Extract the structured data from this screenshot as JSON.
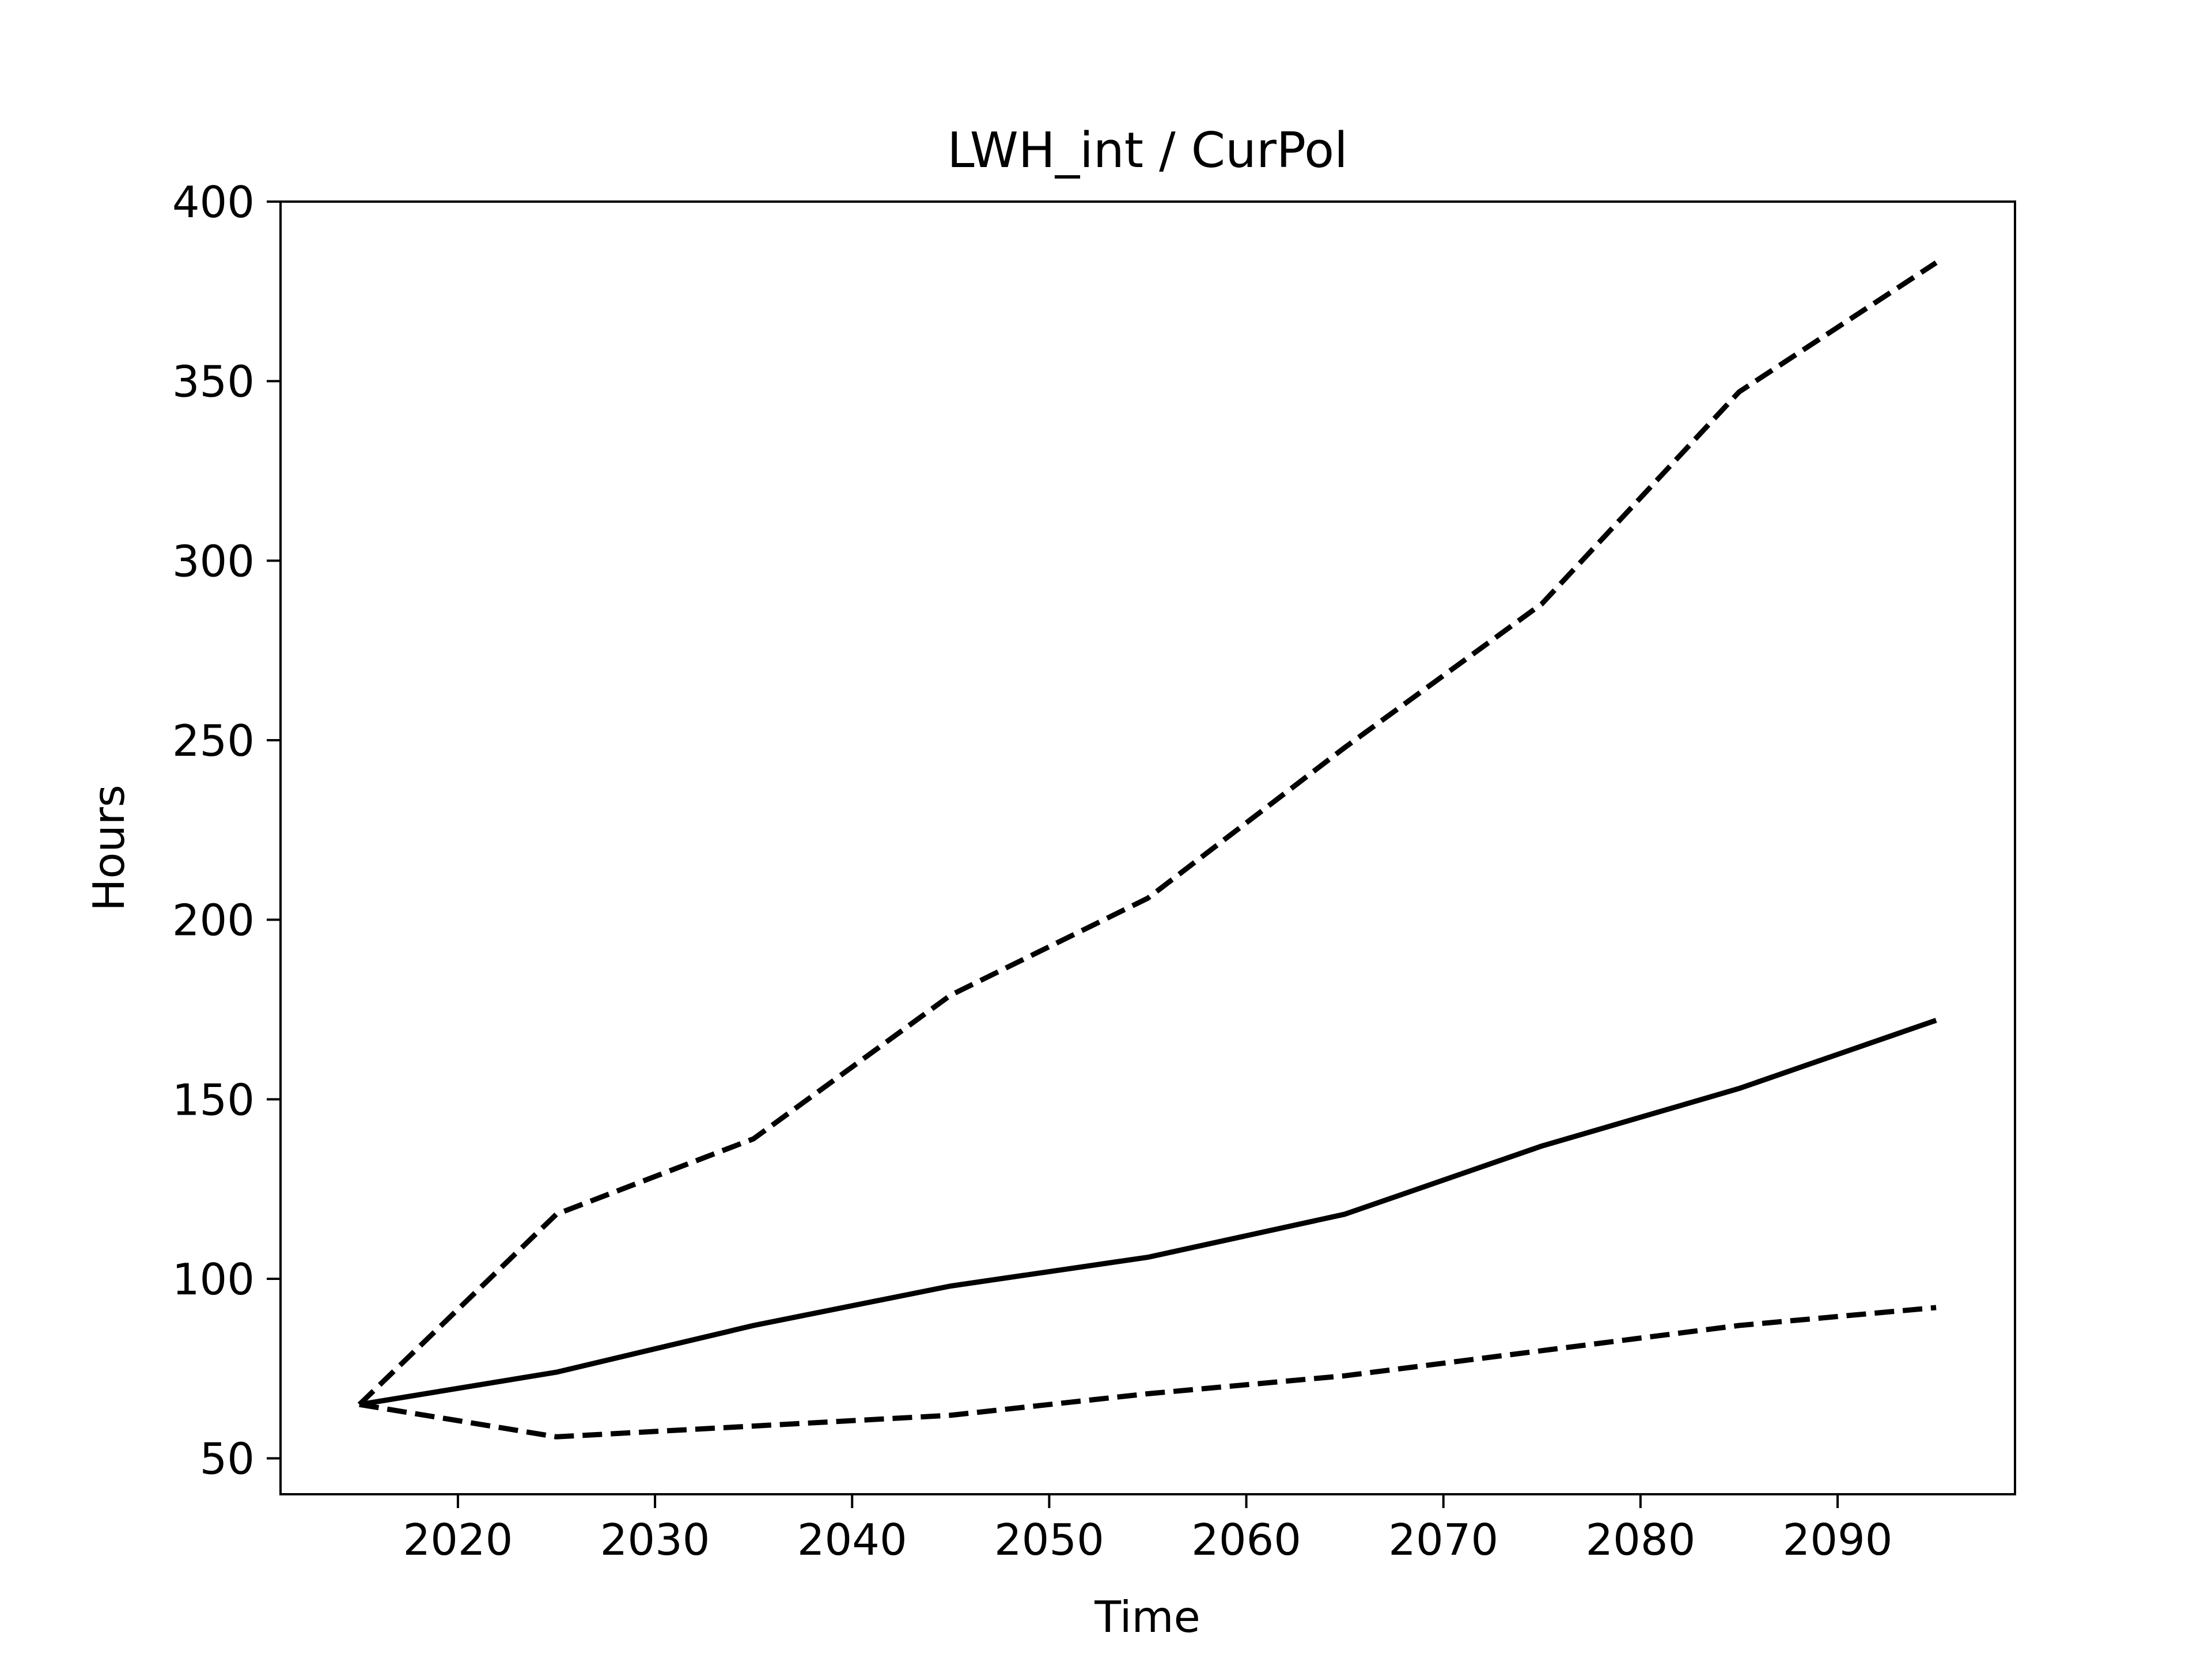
{
  "chart_data": {
    "type": "line",
    "title": "LWH_int / CurPol",
    "xlabel": "Time",
    "ylabel": "Hours",
    "xlim": [
      2011,
      2099
    ],
    "ylim": [
      40,
      400
    ],
    "xticks": [
      2020,
      2030,
      2040,
      2050,
      2060,
      2070,
      2080,
      2090
    ],
    "yticks": [
      50,
      100,
      150,
      200,
      250,
      300,
      350,
      400
    ],
    "grid": false,
    "legend": "none",
    "x": [
      2015,
      2025,
      2035,
      2045,
      2055,
      2065,
      2075,
      2085,
      2095
    ],
    "series": [
      {
        "style": "solid",
        "color": "#000000",
        "values": [
          65,
          74,
          87,
          98,
          106,
          118,
          137,
          153,
          172
        ]
      },
      {
        "style": "dashed",
        "color": "#000000",
        "values": [
          65,
          118,
          139,
          179,
          206,
          248,
          288,
          347,
          383
        ]
      },
      {
        "style": "dashed",
        "color": "#000000",
        "values": [
          65,
          56,
          59,
          62,
          68,
          73,
          80,
          87,
          92
        ]
      }
    ]
  }
}
